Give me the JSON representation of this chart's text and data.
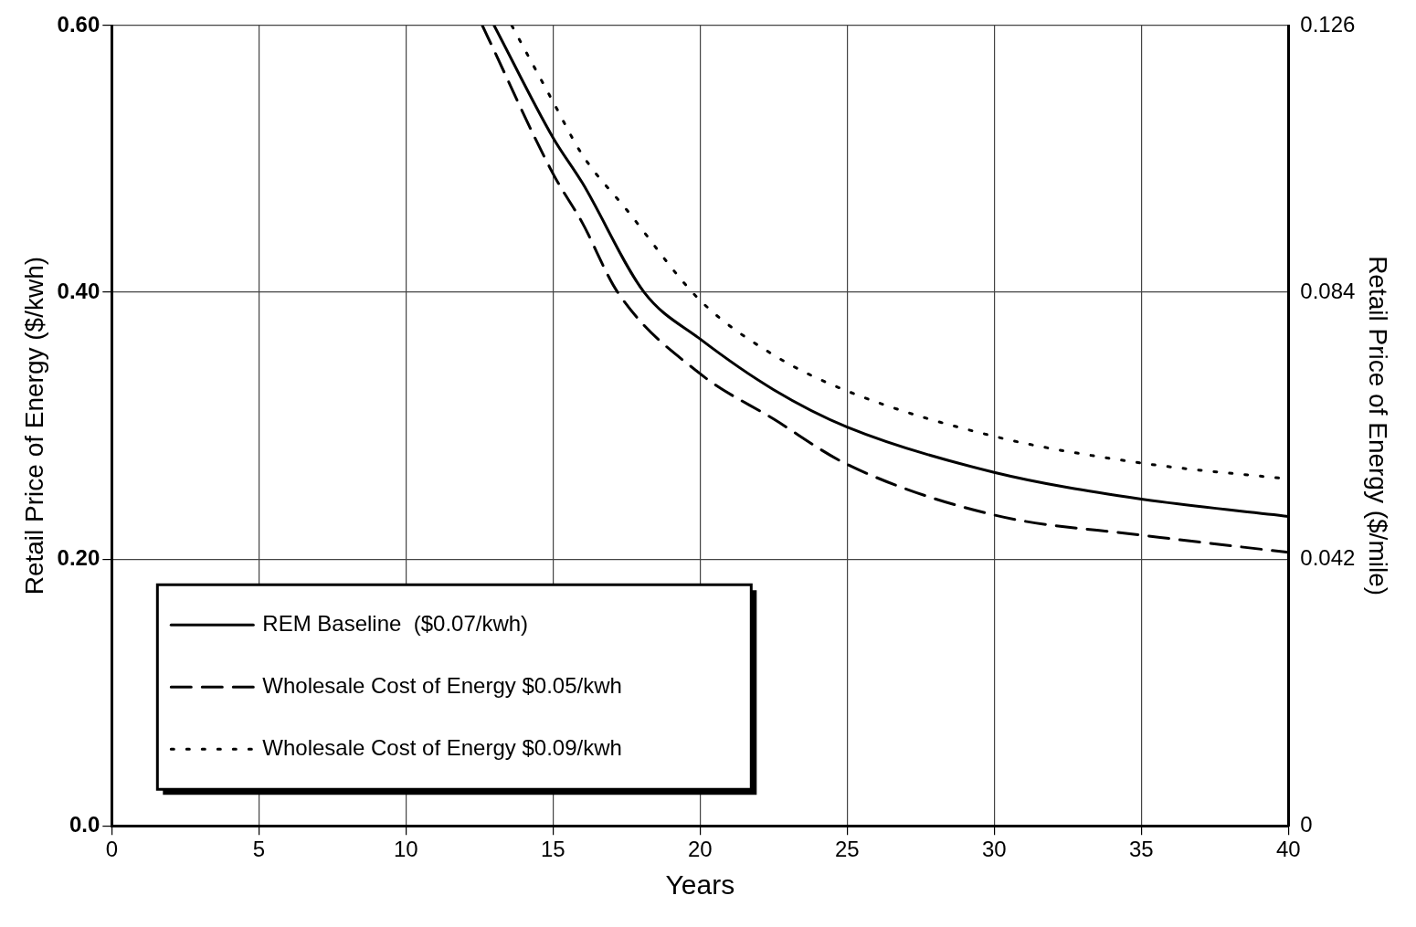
{
  "chart_data": {
    "type": "line",
    "xlabel": "Years",
    "ylabel": "Retail Price of Energy ($/kwh)",
    "y2label": "Retail Price of Energy ($/mile)",
    "xlim": [
      0,
      40
    ],
    "xticks": [
      0,
      5,
      10,
      15,
      20,
      25,
      30,
      35,
      40
    ],
    "ylim": [
      0,
      0.6
    ],
    "yticks": [
      {
        "value": 0,
        "label": "0.0"
      },
      {
        "value": 0.2,
        "label": "0.20"
      },
      {
        "value": 0.4,
        "label": "0.40"
      },
      {
        "value": 0.6,
        "label": "0.60"
      }
    ],
    "y2lim": [
      0,
      0.126
    ],
    "y2ticks": [
      0,
      0.042,
      0.084,
      0.126
    ],
    "grid": true,
    "legend": "bottom left",
    "marker": "none",
    "series": [
      {
        "name": "REM Baseline  ($0.07/kwh)",
        "color": "#000000",
        "line_style": "solid",
        "x": [
          13,
          15,
          16,
          18.1,
          20,
          22.5,
          25,
          30,
          35,
          40
        ],
        "values": [
          0.6,
          0.516,
          0.482,
          0.4,
          0.365,
          0.327,
          0.299,
          0.265,
          0.245,
          0.232
        ]
      },
      {
        "name": "Wholesale Cost of Energy $0.05/kwh",
        "color": "#000000",
        "line_style": "dashed",
        "x": [
          12.6,
          15,
          16,
          17.2,
          20,
          22.5,
          25,
          30,
          35,
          40
        ],
        "values": [
          0.6,
          0.489,
          0.452,
          0.4,
          0.339,
          0.305,
          0.271,
          0.233,
          0.218,
          0.205
        ]
      },
      {
        "name": "Wholesale Cost of Energy $0.09/kwh",
        "color": "#000000",
        "line_style": "dotted",
        "x": [
          13.6,
          15,
          16,
          17.5,
          20,
          22.5,
          25,
          30,
          35,
          40
        ],
        "values": [
          0.6,
          0.543,
          0.503,
          0.462,
          0.394,
          0.353,
          0.326,
          0.292,
          0.272,
          0.26
        ]
      }
    ]
  }
}
